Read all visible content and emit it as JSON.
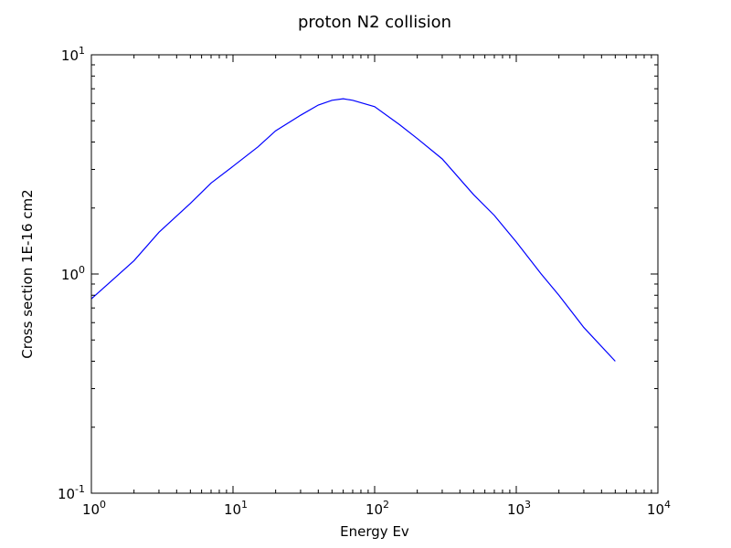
{
  "chart_data": {
    "type": "line",
    "title": "proton N2 collision",
    "xlabel": "Energy Ev",
    "ylabel": "Cross section 1E-16 cm2",
    "xscale": "log",
    "yscale": "log",
    "xlim": [
      1,
      10000
    ],
    "ylim": [
      0.1,
      10
    ],
    "grid": false,
    "x_ticks": [
      {
        "value": 1,
        "base": "10",
        "exp": "0"
      },
      {
        "value": 10,
        "base": "10",
        "exp": "1"
      },
      {
        "value": 100,
        "base": "10",
        "exp": "2"
      },
      {
        "value": 1000,
        "base": "10",
        "exp": "3"
      },
      {
        "value": 10000,
        "base": "10",
        "exp": "4"
      }
    ],
    "y_ticks": [
      {
        "value": 0.1,
        "base": "10",
        "exp": "-1"
      },
      {
        "value": 1,
        "base": "10",
        "exp": "0"
      },
      {
        "value": 10,
        "base": "10",
        "exp": "1"
      }
    ],
    "series": [
      {
        "name": "proton N2 collision",
        "color": "#0000ff",
        "x": [
          1,
          2,
          3,
          5,
          7,
          10,
          15,
          20,
          30,
          40,
          50,
          60,
          70,
          100,
          150,
          200,
          300,
          500,
          700,
          1000,
          1500,
          2000,
          3000,
          5000
        ],
        "y": [
          0.77,
          1.15,
          1.55,
          2.1,
          2.6,
          3.1,
          3.8,
          4.5,
          5.3,
          5.9,
          6.2,
          6.3,
          6.2,
          5.8,
          4.8,
          4.15,
          3.35,
          2.3,
          1.85,
          1.4,
          1.0,
          0.8,
          0.57,
          0.4
        ]
      }
    ]
  }
}
